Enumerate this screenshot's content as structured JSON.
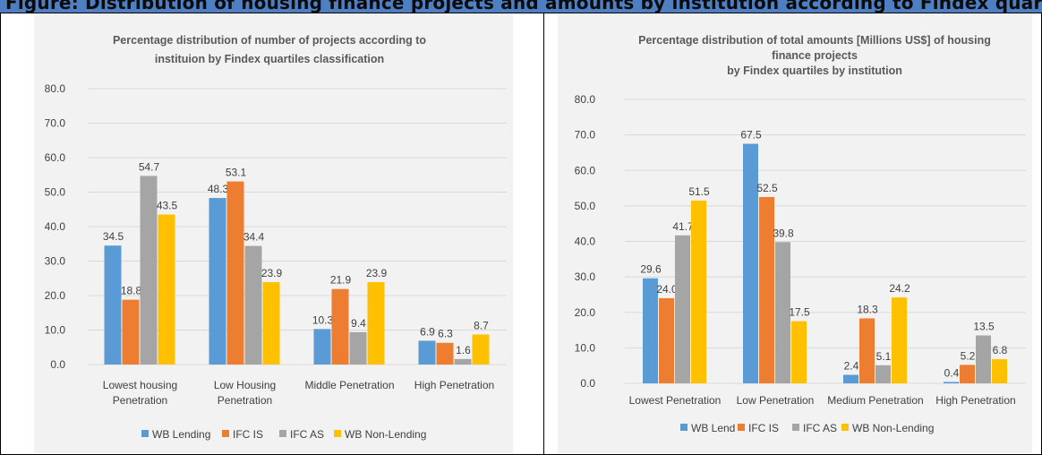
{
  "header": {
    "text": "Figure: Distribution of housing finance projects and amounts by institution according to Findex quartiles"
  },
  "colors": {
    "series": [
      "#5b9bd5",
      "#ed7d31",
      "#a5a5a5",
      "#ffc000"
    ],
    "grid": "#d9d9d9",
    "band": "#4f7fc3"
  },
  "chart_data": [
    {
      "type": "bar",
      "title": [
        "Percentage distribution of number of projects according  to",
        "instituion by Findex quartiles classification"
      ],
      "categories": [
        [
          "Lowest housing",
          "Penetration"
        ],
        [
          "Low Housing",
          "Penetration"
        ],
        [
          "Middle Penetration"
        ],
        [
          "High Penetration"
        ]
      ],
      "series": [
        {
          "name": "WB Lending",
          "values": [
            34.5,
            48.3,
            10.3,
            6.9
          ]
        },
        {
          "name": "IFC IS",
          "values": [
            18.8,
            53.1,
            21.9,
            6.3
          ]
        },
        {
          "name": "IFC AS",
          "values": [
            54.7,
            34.4,
            9.4,
            1.6
          ]
        },
        {
          "name": "WB Non-Lending",
          "values": [
            43.5,
            23.9,
            23.9,
            8.7
          ]
        }
      ],
      "ylim": [
        0,
        80
      ],
      "yticks": [
        "0.0",
        "10.0",
        "20.0",
        "30.0",
        "40.0",
        "50.0",
        "60.0",
        "70.0",
        "80.0"
      ],
      "grid": true,
      "legend": "bottom"
    },
    {
      "type": "bar",
      "title": [
        "Percentage distribution of total amounts [Millions US$]  of housing",
        "finance  projects",
        "by Findex quartiles by institution"
      ],
      "categories": [
        [
          "Lowest Penetration"
        ],
        [
          "Low Penetration"
        ],
        [
          "Medium Penetration"
        ],
        [
          "High Penetration"
        ]
      ],
      "series": [
        {
          "name": "WB Lend",
          "values": [
            29.6,
            67.5,
            2.4,
            0.4
          ]
        },
        {
          "name": "IFC IS",
          "values": [
            24.0,
            52.5,
            18.3,
            5.2
          ]
        },
        {
          "name": "IFC AS",
          "values": [
            41.7,
            39.8,
            5.1,
            13.5
          ]
        },
        {
          "name": "WB Non-Lending",
          "values": [
            51.5,
            17.5,
            24.2,
            6.8
          ]
        }
      ],
      "ylim": [
        0,
        80
      ],
      "yticks": [
        "0.0",
        "10.0",
        "20.0",
        "30.0",
        "40.0",
        "50.0",
        "60.0",
        "70.0",
        "80.0"
      ],
      "grid": true,
      "legend": "bottom"
    }
  ]
}
